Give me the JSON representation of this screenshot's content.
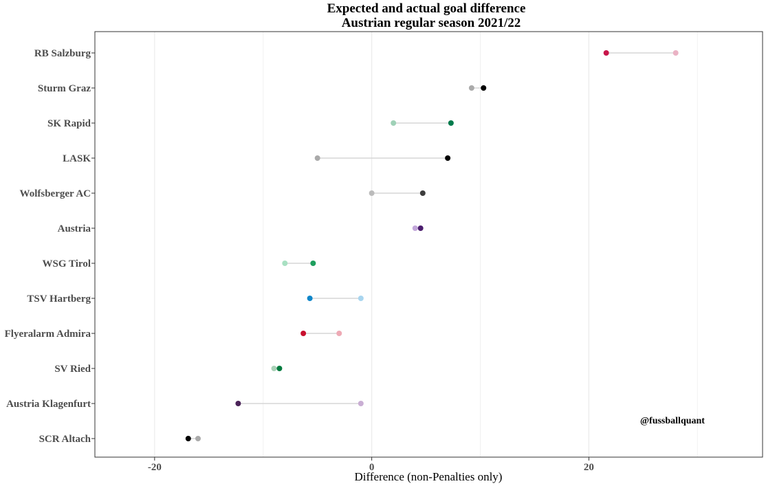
{
  "chart_data": {
    "type": "dumbbell",
    "title": "Expected and actual goal difference",
    "subtitle": "Austrian regular season 2021/22",
    "xlabel": "Difference (non-Penalties only)",
    "ylabel": "",
    "xlim": [
      -25.5,
      36
    ],
    "xticks": [
      -20,
      0,
      20
    ],
    "tick_labels": [
      "-20",
      "0",
      "20"
    ],
    "minor_grid": [
      -10,
      10,
      30
    ],
    "grid": true,
    "annotation": "@fussballquant",
    "teams": [
      {
        "name": "RB Salzburg",
        "dark": 21.6,
        "light": 28.0,
        "dark_color": "#c8164a",
        "light_color": "#eab2c4"
      },
      {
        "name": "Sturm Graz",
        "dark": 10.3,
        "light": 9.2,
        "dark_color": "#000000",
        "light_color": "#aaaaaa"
      },
      {
        "name": "SK Rapid",
        "dark": 7.3,
        "light": 2.0,
        "dark_color": "#007a4b",
        "light_color": "#9fd1b7"
      },
      {
        "name": "LASK",
        "dark": 7.0,
        "light": -5.0,
        "dark_color": "#000000",
        "light_color": "#aaaaaa"
      },
      {
        "name": "Wolfsberger AC",
        "dark": 4.7,
        "light": 0.0,
        "dark_color": "#3d3d3d",
        "light_color": "#bbbbbb"
      },
      {
        "name": "Austria",
        "dark": 4.5,
        "light": 4.0,
        "dark_color": "#4b1d6e",
        "light_color": "#c2a6da"
      },
      {
        "name": "WSG Tirol",
        "dark": -5.4,
        "light": -8.0,
        "dark_color": "#1e9f5e",
        "light_color": "#a8e0c2"
      },
      {
        "name": "TSV Hartberg",
        "dark": -5.7,
        "light": -1.0,
        "dark_color": "#0f86c9",
        "light_color": "#a8d5ef"
      },
      {
        "name": "Flyeralarm Admira",
        "dark": -6.3,
        "light": -3.0,
        "dark_color": "#c8102e",
        "light_color": "#eeaab5"
      },
      {
        "name": "SV Ried",
        "dark": -8.5,
        "light": -9.0,
        "dark_color": "#007a3d",
        "light_color": "#a8d0b6"
      },
      {
        "name": "Austria Klagenfurt",
        "dark": -12.3,
        "light": -1.0,
        "dark_color": "#4a2358",
        "light_color": "#c9aed4"
      },
      {
        "name": "SCR Altach",
        "dark": -16.9,
        "light": -16.0,
        "dark_color": "#000000",
        "light_color": "#aaaaaa"
      }
    ]
  }
}
